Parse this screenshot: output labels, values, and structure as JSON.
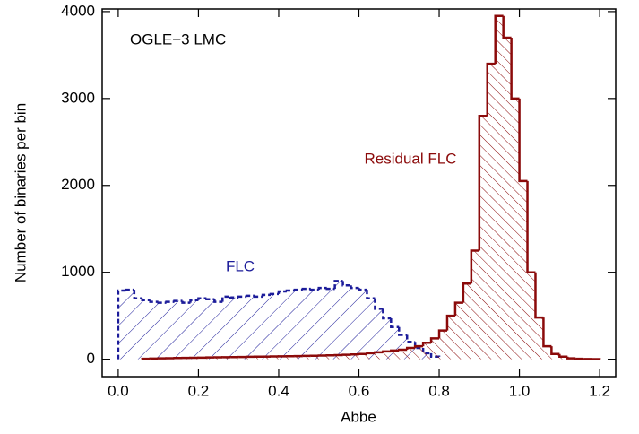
{
  "chart_data": {
    "type": "histogram",
    "xlabel": "Abbe",
    "ylabel": "Number of binaries per bin",
    "annotation": "OGLE−3 LMC",
    "xlim": [
      -0.04,
      1.24
    ],
    "ylim": [
      -200,
      4030
    ],
    "xticks": [
      {
        "value": 0,
        "label": "0.0"
      },
      0.2,
      0.4,
      0.6,
      0.8,
      {
        "value": 1,
        "label": "1.0"
      },
      1.2
    ],
    "yticks": [
      0,
      1000,
      2000,
      3000,
      4000
    ],
    "series": [
      {
        "name": "FLC",
        "color": "#1c1c9a",
        "dashed": true,
        "hatch": "/",
        "bins": [
          0,
          0.02,
          0.04,
          0.06,
          0.08,
          0.1,
          0.12,
          0.14,
          0.16,
          0.18,
          0.2,
          0.22,
          0.24,
          0.26,
          0.28,
          0.3,
          0.32,
          0.34,
          0.36,
          0.38,
          0.4,
          0.42,
          0.44,
          0.46,
          0.48,
          0.5,
          0.52,
          0.54,
          0.56,
          0.58,
          0.6,
          0.62,
          0.64,
          0.66,
          0.68,
          0.7,
          0.72,
          0.74,
          0.76,
          0.78,
          0.8
        ],
        "values": [
          790,
          800,
          700,
          680,
          660,
          650,
          660,
          670,
          650,
          680,
          700,
          690,
          660,
          720,
          710,
          720,
          730,
          720,
          740,
          750,
          780,
          790,
          800,
          810,
          800,
          820,
          810,
          900,
          850,
          820,
          800,
          700,
          580,
          470,
          370,
          280,
          200,
          130,
          70,
          30
        ]
      },
      {
        "name": "Residual FLC",
        "color": "#8b0a0a",
        "dashed": false,
        "hatch": "\\",
        "bins": [
          0.06,
          0.08,
          0.1,
          0.12,
          0.14,
          0.16,
          0.18,
          0.2,
          0.22,
          0.24,
          0.26,
          0.28,
          0.3,
          0.32,
          0.34,
          0.36,
          0.38,
          0.4,
          0.42,
          0.44,
          0.46,
          0.48,
          0.5,
          0.52,
          0.54,
          0.56,
          0.58,
          0.6,
          0.62,
          0.64,
          0.66,
          0.68,
          0.7,
          0.72,
          0.74,
          0.76,
          0.78,
          0.8,
          0.82,
          0.84,
          0.86,
          0.88,
          0.9,
          0.92,
          0.94,
          0.96,
          0.98,
          1.0,
          1.02,
          1.04,
          1.06,
          1.08,
          1.1,
          1.12,
          1.14,
          1.16,
          1.18,
          1.2
        ],
        "values": [
          5,
          8,
          10,
          12,
          14,
          15,
          17,
          18,
          20,
          22,
          23,
          25,
          26,
          28,
          30,
          30,
          32,
          34,
          35,
          36,
          38,
          40,
          42,
          45,
          48,
          52,
          55,
          60,
          70,
          80,
          90,
          100,
          110,
          130,
          150,
          190,
          240,
          330,
          500,
          650,
          870,
          1250,
          2800,
          3400,
          3950,
          3700,
          3000,
          2050,
          1000,
          480,
          150,
          60,
          30,
          10,
          5,
          2,
          1
        ]
      }
    ]
  }
}
